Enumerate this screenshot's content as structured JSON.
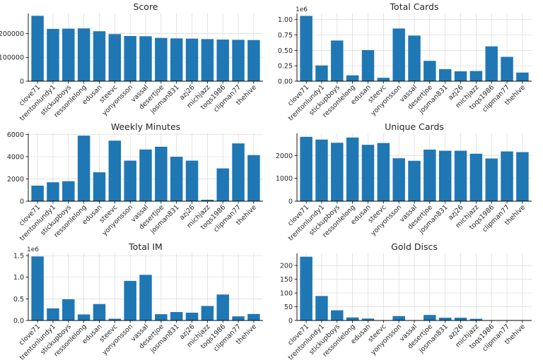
{
  "figure": {
    "bar_color": "#1f77b4",
    "grid": true,
    "categories": [
      "clove71",
      "trentonlundy1",
      "stickupboys",
      "ressonlelong",
      "edusan",
      "steevc",
      "yonyonsson",
      "vassal",
      "desertjoe",
      "josman831",
      "azj26",
      "michjazz",
      "toqs1986",
      "clipman77",
      "thehive"
    ]
  },
  "chart_data": [
    {
      "type": "bar",
      "title": "Score",
      "categories": [
        "clove71",
        "trentonlundy1",
        "stickupboys",
        "ressonlelong",
        "edusan",
        "steevc",
        "yonyonsson",
        "vassal",
        "desertjoe",
        "josman831",
        "azj26",
        "michjazz",
        "toqs1986",
        "clipman77",
        "thehive"
      ],
      "values": [
        275000,
        220000,
        221000,
        222000,
        210000,
        198000,
        190000,
        189000,
        182000,
        180000,
        179000,
        177000,
        175000,
        174000,
        173000
      ],
      "ylim": [
        0,
        285000
      ],
      "yticks": [
        0,
        100000,
        200000
      ],
      "ytick_labels": [
        "0",
        "100000",
        "200000"
      ],
      "offset_label": ""
    },
    {
      "type": "bar",
      "title": "Total Cards",
      "categories": [
        "clove71",
        "trentonlundy1",
        "stickupboys",
        "ressonlelong",
        "edusan",
        "steevc",
        "yonyonsson",
        "vassal",
        "desertjoe",
        "josman831",
        "azj26",
        "michjazz",
        "toqs1986",
        "clipman77",
        "thehive"
      ],
      "values": [
        1060000,
        255000,
        660000,
        95000,
        505000,
        55000,
        855000,
        740000,
        330000,
        195000,
        160000,
        165000,
        565000,
        395000,
        140000
      ],
      "ylim": [
        0,
        1100000
      ],
      "yticks": [
        0,
        250000,
        500000,
        750000,
        1000000
      ],
      "ytick_labels": [
        "0.00",
        "0.25",
        "0.50",
        "0.75",
        "1.00"
      ],
      "offset_label": "1e6"
    },
    {
      "type": "bar",
      "title": "Weekly Minutes",
      "categories": [
        "clove71",
        "trentonlundy1",
        "stickupboys",
        "ressonlelong",
        "edusan",
        "steevc",
        "yonyonsson",
        "vassal",
        "desertjoe",
        "josman831",
        "azj26",
        "michjazz",
        "toqs1986",
        "clipman77",
        "thehive"
      ],
      "values": [
        1400,
        1700,
        1800,
        5900,
        2600,
        5450,
        3650,
        4650,
        4900,
        4000,
        3650,
        130,
        2950,
        5200,
        4150
      ],
      "ylim": [
        0,
        6100
      ],
      "yticks": [
        0,
        2000,
        4000,
        6000
      ],
      "ytick_labels": [
        "0",
        "2000",
        "4000",
        "6000"
      ],
      "offset_label": ""
    },
    {
      "type": "bar",
      "title": "Unique Cards",
      "categories": [
        "clove71",
        "trentonlundy1",
        "stickupboys",
        "ressonlelong",
        "edusan",
        "steevc",
        "yonyonsson",
        "vassal",
        "desertjoe",
        "josman831",
        "azj26",
        "michjazz",
        "toqs1986",
        "clipman77",
        "thehive"
      ],
      "values": [
        2820,
        2700,
        2560,
        2790,
        2470,
        2550,
        1880,
        1770,
        2260,
        2210,
        2210,
        2080,
        1870,
        2180,
        2150
      ],
      "ylim": [
        0,
        2970
      ],
      "yticks": [
        0,
        1000,
        2000
      ],
      "ytick_labels": [
        "0",
        "1000",
        "2000"
      ],
      "offset_label": ""
    },
    {
      "type": "bar",
      "title": "Total IM",
      "categories": [
        "clove71",
        "trentonlundy1",
        "stickupboys",
        "ressonlelong",
        "edusan",
        "steevc",
        "yonyonsson",
        "vassal",
        "desertjoe",
        "josman831",
        "azj26",
        "michjazz",
        "toqs1986",
        "clipman77",
        "thehive"
      ],
      "values": [
        1480000,
        280000,
        490000,
        140000,
        380000,
        40000,
        915000,
        1055000,
        145000,
        195000,
        180000,
        335000,
        600000,
        95000,
        150000
      ],
      "ylim": [
        0,
        1550000
      ],
      "yticks": [
        0,
        500000,
        1000000,
        1500000
      ],
      "ytick_labels": [
        "0.0",
        "0.5",
        "1.0",
        "1.5"
      ],
      "offset_label": "1e6"
    },
    {
      "type": "bar",
      "title": "Gold Discs",
      "categories": [
        "clove71",
        "trentonlundy1",
        "stickupboys",
        "ressonlelong",
        "edusan",
        "steevc",
        "yonyonsson",
        "vassal",
        "desertjoe",
        "josman831",
        "azj26",
        "michjazz",
        "toqs1986",
        "clipman77",
        "thehive"
      ],
      "values": [
        232,
        89,
        37,
        11,
        7,
        1,
        16,
        1,
        20,
        10,
        10,
        6,
        1,
        1,
        1
      ],
      "ylim": [
        0,
        244
      ],
      "yticks": [
        0,
        50,
        100,
        150,
        200
      ],
      "ytick_labels": [
        "0",
        "50",
        "100",
        "150",
        "200"
      ],
      "offset_label": ""
    }
  ]
}
